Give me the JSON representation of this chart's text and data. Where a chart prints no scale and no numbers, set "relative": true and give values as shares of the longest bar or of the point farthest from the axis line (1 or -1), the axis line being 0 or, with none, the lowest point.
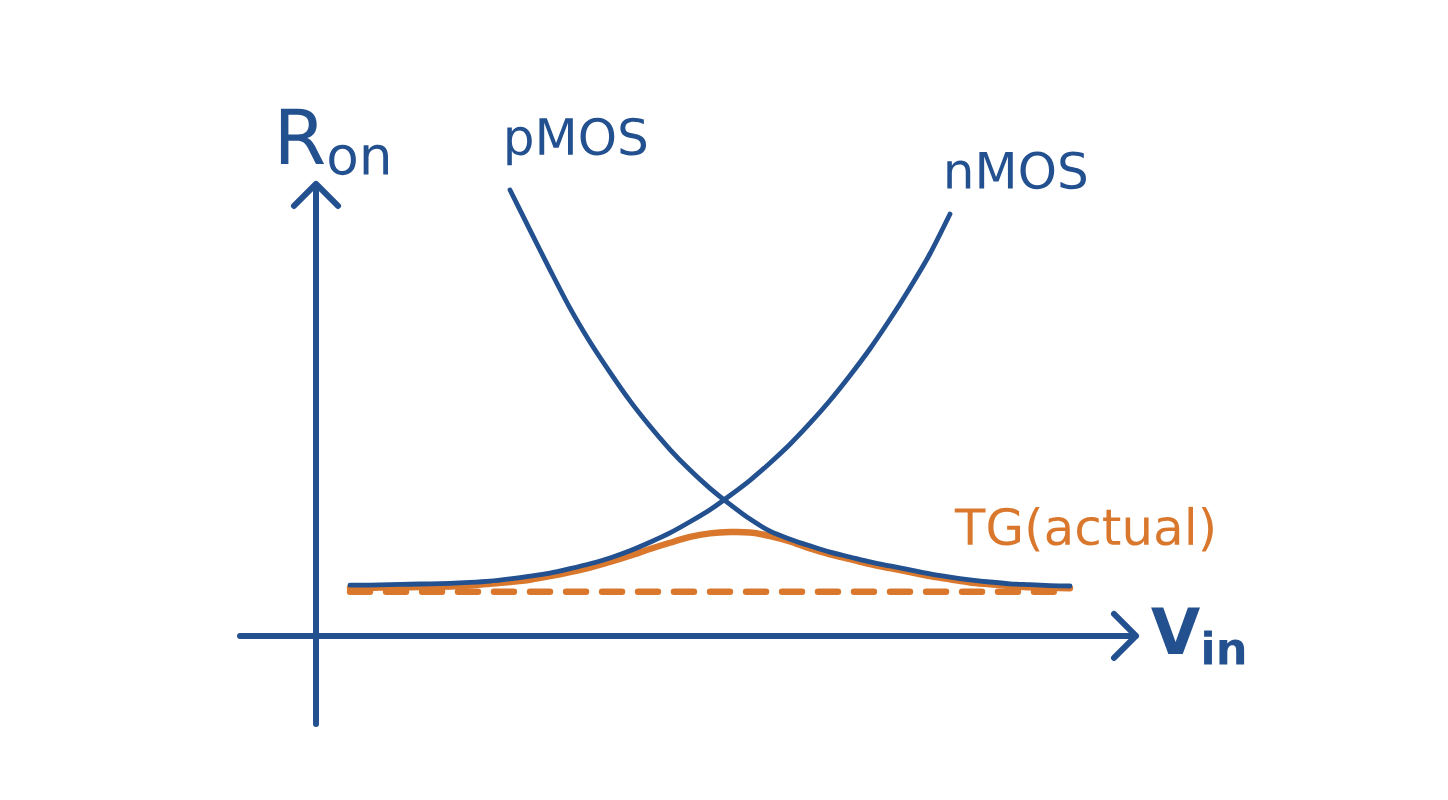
{
  "chart_data": {
    "type": "line",
    "relative": true,
    "xlabel": "V$_{in}$",
    "ylabel": "R$_{on}$",
    "categories": [
      null,
      null,
      null,
      null,
      null,
      null,
      null,
      null,
      null,
      null,
      null,
      null,
      null,
      null,
      null,
      null,
      null,
      null,
      null,
      null,
      null,
      null,
      null,
      null,
      null,
      null,
      null,
      null,
      null,
      null,
      null,
      null,
      null,
      null,
      null,
      null,
      null
    ],
    "series": [
      {
        "name": "pMOS",
        "color": "#23508f",
        "values": [
          null,
          null,
          null,
          null,
          null,
          null,
          null,
          null,
          1.0,
          0.91,
          0.821,
          0.735,
          0.659,
          0.591,
          0.527,
          0.47,
          0.418,
          0.372,
          0.331,
          0.295,
          0.262,
          0.235,
          0.217,
          0.202,
          0.188,
          0.177,
          0.166,
          0.157,
          0.148,
          0.139,
          0.132,
          0.126,
          0.121,
          0.117,
          0.115,
          0.113,
          0.112
        ]
      },
      {
        "name": "nMOS",
        "color": "#23508f",
        "values": [
          0.114,
          0.114,
          0.115,
          0.116,
          0.117,
          0.118,
          0.12,
          0.123,
          0.128,
          0.134,
          0.141,
          0.151,
          0.162,
          0.175,
          0.191,
          0.21,
          0.231,
          0.256,
          0.283,
          0.315,
          0.349,
          0.388,
          0.43,
          0.477,
          0.528,
          0.584,
          0.644,
          0.71,
          0.781,
          0.857,
          0.946,
          null,
          null,
          null,
          null,
          null,
          null
        ]
      },
      {
        "name": "TG(actual)",
        "color": "#d9782d",
        "values": [
          0.108,
          0.108,
          0.109,
          0.109,
          0.11,
          0.111,
          0.113,
          0.117,
          0.121,
          0.126,
          0.134,
          0.143,
          0.153,
          0.166,
          0.18,
          0.195,
          0.209,
          0.222,
          0.23,
          0.233,
          0.232,
          0.224,
          0.212,
          0.196,
          0.183,
          0.172,
          0.161,
          0.152,
          0.143,
          0.134,
          0.127,
          0.12,
          0.116,
          0.112,
          0.109,
          0.108,
          0.107
        ]
      },
      {
        "color": "#d9782d",
        "line_style": "dashed",
        "values": [
          0.099,
          0.099,
          0.099,
          0.099,
          0.099,
          0.099,
          0.099,
          0.099,
          0.099,
          0.099,
          0.099,
          0.099,
          0.099,
          0.099,
          0.099,
          0.099,
          0.099,
          0.099,
          0.099,
          0.099,
          0.099,
          0.099,
          0.099,
          0.099,
          0.099,
          0.099,
          0.099,
          0.099,
          0.099,
          0.099,
          0.099,
          0.099,
          0.099,
          0.099,
          0.099,
          0.099,
          0.099
        ]
      }
    ]
  }
}
